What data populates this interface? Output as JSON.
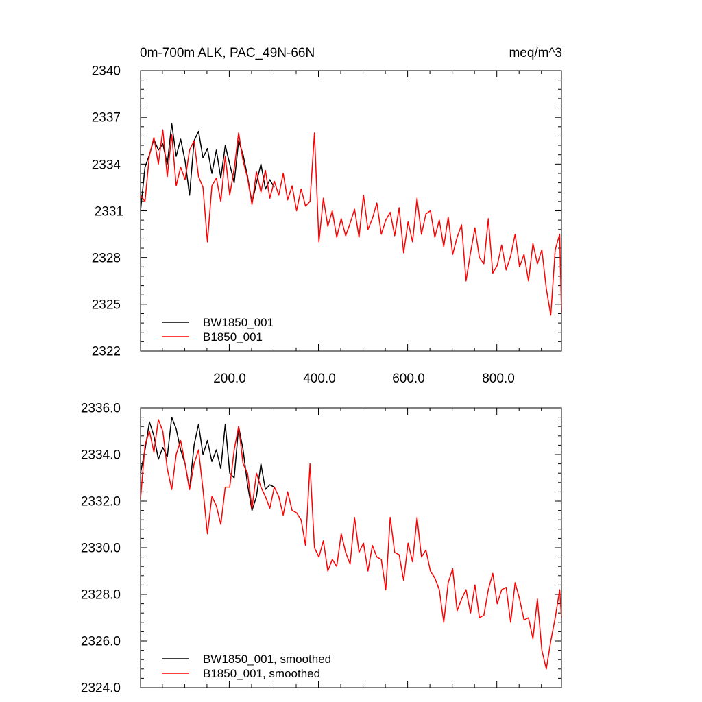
{
  "chart_data": [
    {
      "type": "line",
      "title_left": "0m-700m ALK, PAC_49N-66N",
      "title_right": "meq/m^3",
      "xlabel": "",
      "ylabel": "",
      "xlim": [
        1,
        945
      ],
      "ylim": [
        2322,
        2340
      ],
      "y_ticks": [
        2322,
        2325,
        2328,
        2331,
        2334,
        2337,
        2340
      ],
      "y_tick_labels": [
        "2322",
        "2325",
        "2328",
        "2331",
        "2334",
        "2337",
        "2340"
      ],
      "x_ticks": [
        200,
        400,
        600,
        800
      ],
      "x_tick_labels": [
        "200.0",
        "400.0",
        "600.0",
        "800.0"
      ],
      "legend_position": "bottom-left",
      "series": [
        {
          "name": "BW1850_001",
          "color": "#000000",
          "x": [
            1,
            11,
            21,
            31,
            41,
            51,
            61,
            71,
            81,
            91,
            101,
            111,
            121,
            131,
            141,
            151,
            161,
            171,
            181,
            191,
            201,
            211,
            221,
            231,
            241,
            251,
            261,
            271,
            281,
            291,
            301
          ],
          "values": [
            2331.0,
            2333.8,
            2334.6,
            2335.6,
            2334.9,
            2335.3,
            2334.0,
            2336.6,
            2334.5,
            2335.6,
            2334.2,
            2332.0,
            2335.5,
            2336.1,
            2334.4,
            2335.0,
            2333.4,
            2334.9,
            2333.1,
            2335.2,
            2334.0,
            2332.8,
            2335.5,
            2334.6,
            2333.2,
            2331.5,
            2332.8,
            2334.0,
            2332.4,
            2333.0,
            2332.5
          ]
        },
        {
          "name": "B1850_001",
          "color": "#ff0000",
          "x": [
            1,
            11,
            21,
            31,
            41,
            51,
            61,
            71,
            81,
            91,
            101,
            111,
            121,
            131,
            141,
            151,
            161,
            171,
            181,
            191,
            201,
            211,
            221,
            231,
            241,
            251,
            261,
            271,
            281,
            291,
            301,
            311,
            321,
            331,
            341,
            351,
            361,
            371,
            381,
            391,
            401,
            411,
            421,
            431,
            441,
            451,
            461,
            471,
            481,
            491,
            501,
            511,
            521,
            531,
            541,
            551,
            561,
            571,
            581,
            591,
            601,
            611,
            621,
            631,
            641,
            651,
            661,
            671,
            681,
            691,
            701,
            711,
            721,
            731,
            741,
            751,
            761,
            771,
            781,
            791,
            801,
            811,
            821,
            831,
            841,
            851,
            861,
            871,
            881,
            891,
            901,
            911,
            921,
            931,
            941,
            945
          ],
          "values": [
            2332.0,
            2331.6,
            2334.6,
            2335.7,
            2334.0,
            2336.2,
            2333.2,
            2335.9,
            2332.6,
            2333.8,
            2333.0,
            2334.9,
            2335.5,
            2333.2,
            2332.5,
            2329.0,
            2332.6,
            2333.1,
            2331.6,
            2334.5,
            2332.0,
            2333.7,
            2336.0,
            2334.2,
            2333.1,
            2331.4,
            2333.5,
            2332.2,
            2333.6,
            2331.8,
            2332.9,
            2332.0,
            2333.4,
            2331.7,
            2332.6,
            2331.0,
            2332.4,
            2331.3,
            2331.6,
            2336.0,
            2329.0,
            2331.8,
            2330.0,
            2331.0,
            2329.3,
            2330.5,
            2329.4,
            2330.2,
            2331.1,
            2329.3,
            2332.0,
            2329.8,
            2330.5,
            2331.5,
            2329.5,
            2330.4,
            2330.9,
            2329.4,
            2331.2,
            2328.3,
            2330.3,
            2329.0,
            2331.8,
            2329.5,
            2330.8,
            2331.0,
            2329.3,
            2330.4,
            2328.7,
            2330.6,
            2328.2,
            2329.3,
            2330.1,
            2326.5,
            2328.3,
            2329.9,
            2328.0,
            2327.6,
            2330.5,
            2327.0,
            2327.5,
            2328.8,
            2327.2,
            2328.1,
            2329.5,
            2327.4,
            2328.2,
            2326.5,
            2328.9,
            2327.6,
            2328.5,
            2326.0,
            2324.3,
            2328.5,
            2329.5,
            2324.5
          ]
        }
      ]
    },
    {
      "type": "line",
      "title": "",
      "xlabel": "",
      "ylabel": "",
      "xlim": [
        1,
        945
      ],
      "ylim": [
        2324,
        2336
      ],
      "y_ticks": [
        2324,
        2326,
        2328,
        2330,
        2332,
        2334,
        2336
      ],
      "y_tick_labels": [
        "2324.0",
        "2326.0",
        "2328.0",
        "2330.0",
        "2332.0",
        "2334.0",
        "2336.0"
      ],
      "x_ticks": [
        200,
        400,
        600,
        800
      ],
      "legend_position": "bottom-left",
      "series": [
        {
          "name": "BW1850_001, smoothed",
          "color": "#000000",
          "x": [
            1,
            11,
            21,
            31,
            41,
            51,
            61,
            71,
            81,
            91,
            101,
            111,
            121,
            131,
            141,
            151,
            161,
            171,
            181,
            191,
            201,
            211,
            221,
            231,
            241,
            251,
            261,
            271,
            281,
            291,
            301
          ],
          "values": [
            2333.2,
            2334.2,
            2335.4,
            2334.8,
            2333.8,
            2334.3,
            2333.9,
            2335.6,
            2335.1,
            2334.2,
            2333.6,
            2332.5,
            2334.4,
            2335.3,
            2334.0,
            2334.6,
            2333.7,
            2334.2,
            2333.4,
            2335.3,
            2333.2,
            2333.0,
            2335.2,
            2334.2,
            2332.7,
            2331.6,
            2332.2,
            2333.6,
            2332.5,
            2332.7,
            2332.6
          ]
        },
        {
          "name": "B1850_001, smoothed",
          "color": "#ff0000",
          "x": [
            1,
            11,
            21,
            31,
            41,
            51,
            61,
            71,
            81,
            91,
            101,
            111,
            121,
            131,
            141,
            151,
            161,
            171,
            181,
            191,
            201,
            211,
            221,
            231,
            241,
            251,
            261,
            271,
            281,
            291,
            301,
            311,
            321,
            331,
            341,
            351,
            361,
            371,
            381,
            391,
            401,
            411,
            421,
            431,
            441,
            451,
            461,
            471,
            481,
            491,
            501,
            511,
            521,
            531,
            541,
            551,
            561,
            571,
            581,
            591,
            601,
            611,
            621,
            631,
            641,
            651,
            661,
            671,
            681,
            691,
            701,
            711,
            721,
            731,
            741,
            751,
            761,
            771,
            781,
            791,
            801,
            811,
            821,
            831,
            841,
            851,
            861,
            871,
            881,
            891,
            901,
            911,
            921,
            931,
            941,
            945
          ],
          "values": [
            2332.1,
            2334.4,
            2335.0,
            2334.1,
            2335.5,
            2335.0,
            2333.4,
            2332.5,
            2334.0,
            2334.6,
            2333.6,
            2332.5,
            2333.6,
            2334.2,
            2332.5,
            2330.6,
            2332.2,
            2331.8,
            2331.0,
            2332.6,
            2332.6,
            2334.2,
            2335.2,
            2333.6,
            2333.2,
            2331.7,
            2333.2,
            2332.6,
            2332.2,
            2331.7,
            2332.6,
            2332.2,
            2331.4,
            2332.4,
            2331.6,
            2331.5,
            2331.2,
            2330.1,
            2333.6,
            2330.0,
            2329.6,
            2330.3,
            2329.0,
            2329.5,
            2329.2,
            2330.6,
            2329.8,
            2329.3,
            2331.3,
            2329.8,
            2330.2,
            2329.0,
            2330.1,
            2329.6,
            2329.5,
            2328.2,
            2331.3,
            2329.8,
            2329.7,
            2328.6,
            2330.2,
            2329.4,
            2331.3,
            2329.6,
            2329.9,
            2329.0,
            2328.7,
            2328.2,
            2326.8,
            2328.5,
            2329.1,
            2327.3,
            2327.8,
            2328.2,
            2327.2,
            2328.4,
            2327.0,
            2327.1,
            2328.2,
            2328.9,
            2327.6,
            2328.2,
            2328.3,
            2326.8,
            2328.5,
            2327.8,
            2326.9,
            2327.0,
            2326.1,
            2327.8,
            2325.6,
            2324.8,
            2326.0,
            2327.0,
            2328.2,
            2327.0
          ]
        }
      ]
    }
  ]
}
